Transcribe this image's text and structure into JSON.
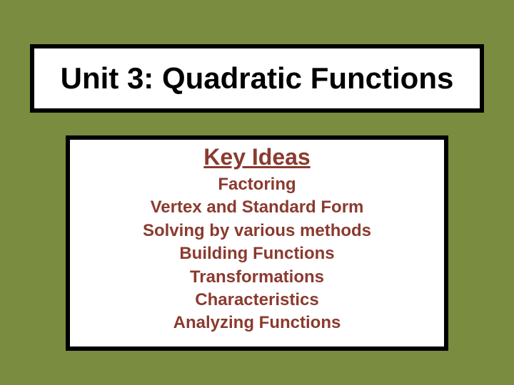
{
  "slide": {
    "background_color": "#7a8c3f",
    "box_border_color": "#000000",
    "box_border_width": 6,
    "box_background": "#ffffff",
    "title": {
      "text": "Unit 3: Quadratic Functions",
      "color": "#000000",
      "font_size": 42,
      "font_weight": "bold"
    },
    "subheading": {
      "text": "Key Ideas",
      "color": "#8b3a2f",
      "font_size": 32,
      "font_weight": "bold",
      "underline": true
    },
    "items": [
      "Factoring",
      "Vertex and Standard Form",
      "Solving by various methods",
      "Building Functions",
      "Transformations",
      "Characteristics",
      "Analyzing Functions"
    ],
    "item_style": {
      "color": "#8b3a2f",
      "font_size": 24,
      "font_weight": "bold"
    }
  }
}
